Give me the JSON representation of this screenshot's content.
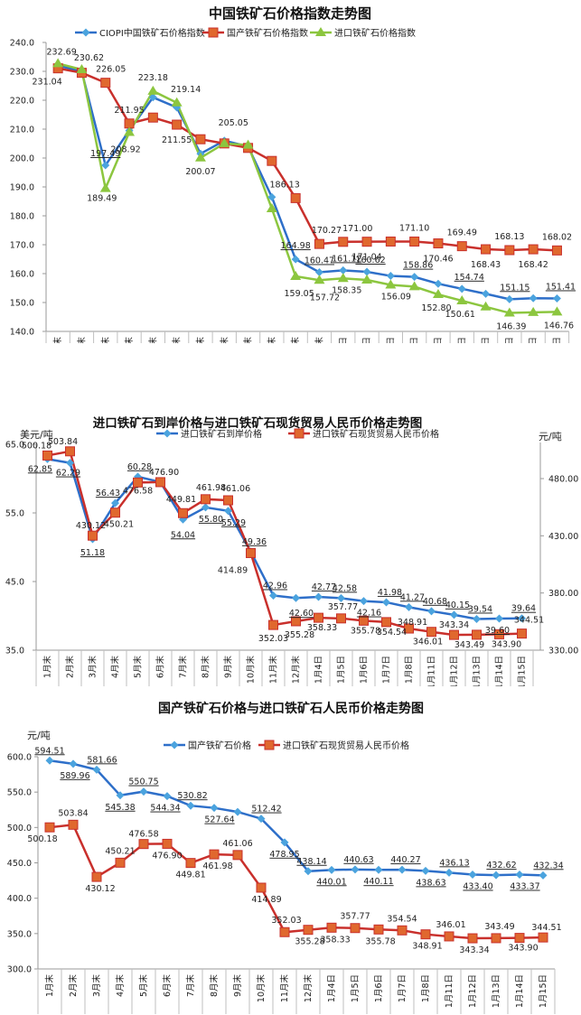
{
  "colors": {
    "blue": "#2E6FC9",
    "blue_marker": "#4BA3DE",
    "red": "#C9302C",
    "red_marker": "#E0682E",
    "green": "#8CC63F",
    "axis": "#999999"
  },
  "chart_data": [
    {
      "type": "line",
      "title": "中国铁矿石价格指数走势图",
      "categories": [
        "1月末",
        "2月末",
        "3月末",
        "4月末",
        "5月末",
        "6月末",
        "7月末",
        "8月末",
        "9月末",
        "10月末",
        "11月末",
        "12月末",
        "1月4日",
        "1月5日",
        "1月6日",
        "1月7日",
        "1月8日",
        "1月11日",
        "1月12日",
        "1月13日",
        "1月14日",
        "1月15日"
      ],
      "ylim": [
        140,
        240
      ],
      "yticks": [
        "140.0",
        "150.0",
        "160.0",
        "170.0",
        "180.0",
        "190.0",
        "200.0",
        "210.0",
        "220.0",
        "230.0",
        "240.0"
      ],
      "legend_position": "top",
      "series": [
        {
          "name": "CIOPI中国铁矿石价格指数",
          "color_key": "blue",
          "marker": "diamond",
          "values": [
            232.0,
            230.0,
            197.49,
            209.5,
            221.0,
            217.5,
            201.5,
            206.0,
            204.0,
            186.5,
            164.98,
            160.47,
            161.12,
            160.62,
            159.2,
            158.86,
            156.5,
            154.74,
            153.0,
            151.15,
            151.5,
            151.41
          ],
          "labels": [
            null,
            null,
            "197.49",
            null,
            null,
            null,
            null,
            null,
            null,
            null,
            "164.98",
            "160.47",
            "161.12",
            "160.62",
            null,
            "158.86",
            null,
            "154.74",
            null,
            "151.15",
            null,
            "151.41"
          ]
        },
        {
          "name": "国产铁矿石价格指数",
          "color_key": "red",
          "marker": "square",
          "values": [
            231.04,
            229.5,
            226.05,
            211.95,
            214.0,
            211.55,
            206.5,
            205.05,
            203.5,
            199.0,
            186.13,
            170.27,
            171.0,
            171.04,
            171.1,
            171.1,
            170.46,
            169.49,
            168.43,
            168.13,
            168.42,
            168.02
          ],
          "labels": [
            "231.04",
            null,
            "226.05",
            "211.95",
            null,
            "211.55",
            null,
            null,
            null,
            null,
            "186.13",
            "170.27",
            "171.00",
            "171.04",
            null,
            "171.10",
            "170.46",
            "169.49",
            "168.43",
            "168.13",
            "168.42",
            "168.02"
          ]
        },
        {
          "name": "进口铁矿石价格指数",
          "color_key": "green",
          "marker": "triangle",
          "values": [
            232.69,
            230.62,
            189.49,
            208.92,
            223.18,
            219.14,
            200.07,
            205.05,
            204.5,
            182.5,
            159.05,
            157.72,
            158.35,
            157.8,
            156.09,
            155.5,
            152.8,
            150.61,
            148.5,
            146.39,
            146.6,
            146.76
          ],
          "labels": [
            "232.69",
            "230.62",
            "189.49",
            "208.92",
            "223.18",
            "219.14",
            "200.07",
            "205.05",
            null,
            null,
            "159.05",
            "157.72",
            "158.35",
            null,
            "156.09",
            null,
            "152.80",
            "150.61",
            null,
            "146.39",
            null,
            "146.76"
          ]
        }
      ]
    },
    {
      "type": "line",
      "title": "进口铁矿石到岸价格与进口铁矿石现货贸易人民币价格走势图",
      "categories": [
        "1月末",
        "2月末",
        "3月末",
        "4月末",
        "5月末",
        "6月末",
        "7月末",
        "8月末",
        "9月末",
        "10月末",
        "11月末",
        "12月末",
        "1月4日",
        "1月5日",
        "1月6日",
        "1月7日",
        "1月8日",
        "1月11日",
        "1月12日",
        "1月13日",
        "1月14日",
        "1月15日"
      ],
      "ylabel_left": "美元/吨",
      "ylabel_right": "元/吨",
      "ylim_left": [
        35,
        65
      ],
      "ylim_right": [
        330,
        505
      ],
      "yticks_left": [
        "35.0",
        "45.0",
        "55.0",
        "65.0"
      ],
      "yticks_right": [
        "330.00",
        "380.00",
        "430.00",
        "480.00"
      ],
      "legend_position": "top",
      "series": [
        {
          "name": "进口铁矿石到岸价格",
          "axis": "left",
          "color_key": "blue",
          "marker": "diamond",
          "values": [
            62.85,
            62.29,
            51.18,
            56.43,
            60.28,
            59.5,
            54.04,
            55.8,
            55.29,
            49.36,
            42.96,
            42.6,
            42.77,
            42.58,
            42.16,
            41.98,
            41.27,
            40.68,
            40.15,
            39.54,
            39.6,
            39.64
          ],
          "labels": [
            "62.85",
            "62.29",
            "51.18",
            "56.43",
            "60.28",
            null,
            "54.04",
            "55.80",
            "55.29",
            "49.36",
            "42.96",
            "42.60",
            "42.77",
            "42.58",
            "42.16",
            "41.98",
            "41.27",
            "40.68",
            "40.15",
            "39.54",
            "39.60",
            "39.64"
          ]
        },
        {
          "name": "进口铁矿石现货贸易人民币价格",
          "axis": "right",
          "color_key": "red",
          "marker": "square",
          "values": [
            500.18,
            503.84,
            430.12,
            450.21,
            476.58,
            476.9,
            449.81,
            461.98,
            461.06,
            414.89,
            352.03,
            355.28,
            358.33,
            357.77,
            355.78,
            354.54,
            348.91,
            346.01,
            343.34,
            343.49,
            343.9,
            344.51
          ],
          "labels": [
            "500.18",
            "503.84",
            "430.12",
            "450.21",
            "476.58",
            "476.90",
            "449.81",
            "461.98",
            "461.06",
            "414.89",
            "352.03",
            "355.28",
            "358.33",
            "357.77",
            "355.78",
            "354.54",
            "348.91",
            "346.01",
            "343.34",
            "343.49",
            "343.90",
            "344.51"
          ]
        }
      ]
    },
    {
      "type": "line",
      "title": "国产铁矿石价格与进口铁矿石人民币价格走势图",
      "categories": [
        "1月末",
        "2月末",
        "3月末",
        "4月末",
        "5月末",
        "6月末",
        "7月末",
        "8月末",
        "9月末",
        "10月末",
        "11月末",
        "12月末",
        "1月4日",
        "1月5日",
        "1月6日",
        "1月7日",
        "1月8日",
        "1月11日",
        "1月12日",
        "1月13日",
        "1月14日",
        "1月15日"
      ],
      "ylabel": "元/吨",
      "ylim": [
        300,
        600
      ],
      "yticks": [
        "300.0",
        "350.0",
        "400.0",
        "450.0",
        "500.0",
        "550.0",
        "600.0"
      ],
      "legend_position": "top",
      "series": [
        {
          "name": "国产铁矿石价格",
          "color_key": "blue",
          "marker": "diamond",
          "values": [
            594.51,
            589.96,
            581.66,
            545.38,
            550.75,
            544.34,
            530.82,
            527.64,
            522.0,
            512.42,
            478.95,
            438.14,
            440.01,
            440.63,
            440.11,
            440.27,
            438.63,
            436.13,
            433.4,
            432.62,
            433.37,
            432.34
          ],
          "labels": [
            "594.51",
            "589.96",
            "581.66",
            "545.38",
            "550.75",
            "544.34",
            "530.82",
            "527.64",
            null,
            "512.42",
            "478.95",
            "438.14",
            "440.01",
            "440.63",
            "440.11",
            "440.27",
            "438.63",
            "436.13",
            "433.40",
            "432.62",
            "433.37",
            "432.34"
          ]
        },
        {
          "name": "进口铁矿石现货贸易人民币价格",
          "color_key": "red",
          "marker": "square",
          "values": [
            500.18,
            503.84,
            430.12,
            450.21,
            476.58,
            476.9,
            449.81,
            461.98,
            461.06,
            414.89,
            352.03,
            355.28,
            358.33,
            357.77,
            355.78,
            354.54,
            348.91,
            346.01,
            343.34,
            343.49,
            343.9,
            344.51
          ],
          "labels": [
            "500.18",
            "503.84",
            "430.12",
            "450.21",
            "476.58",
            "476.90",
            "449.81",
            "461.98",
            "461.06",
            "414.89",
            "352.03",
            "355.28",
            "358.33",
            "357.77",
            "355.78",
            "354.54",
            "348.91",
            "346.01",
            "343.34",
            "343.49",
            "343.90",
            "344.51"
          ]
        }
      ]
    }
  ]
}
